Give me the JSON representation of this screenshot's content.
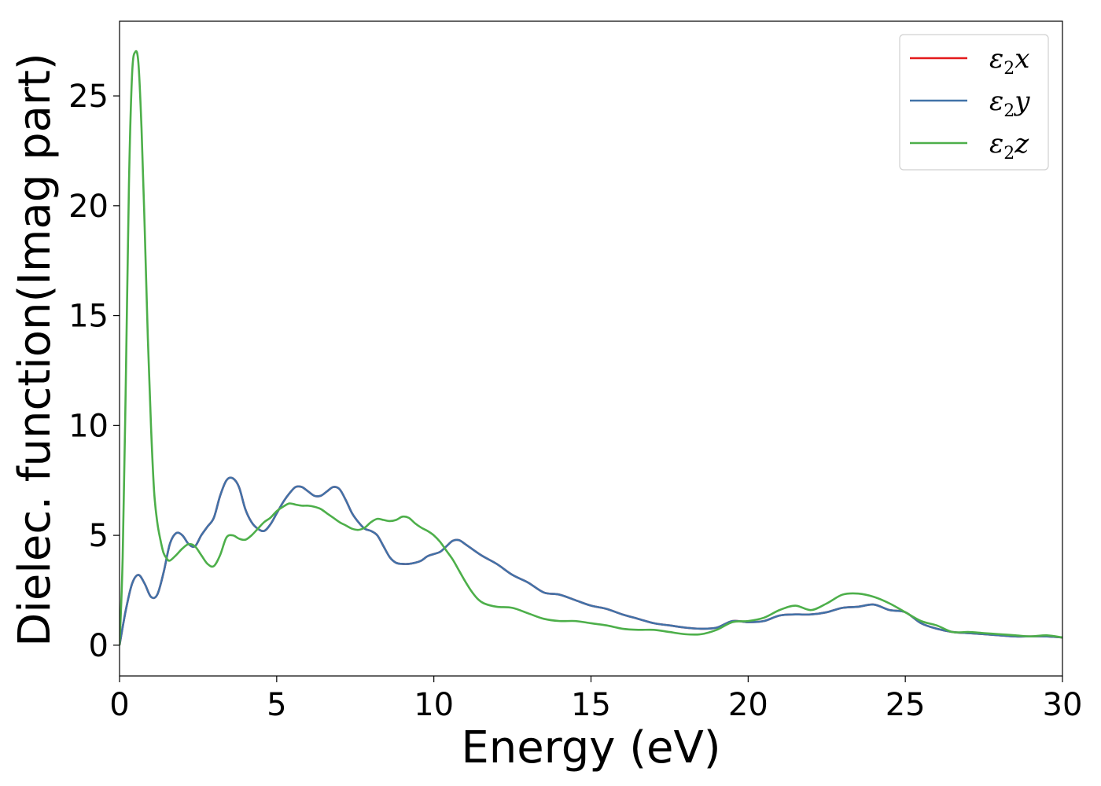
{
  "chart_data": {
    "type": "line",
    "title": "",
    "xlabel": "Energy (eV)",
    "ylabel": "Dielec. function(Imag part)",
    "xlim": [
      0,
      30
    ],
    "ylim": [
      -1.4,
      28.4
    ],
    "xticks": [
      0,
      5,
      10,
      15,
      20,
      25,
      30
    ],
    "yticks": [
      0,
      5,
      10,
      15,
      20,
      25
    ],
    "grid": false,
    "legend_position": "top-right",
    "series": [
      {
        "name": "ε2x",
        "label_main": "ε",
        "label_sub": "2",
        "label_var": "x",
        "color": "#e41a1c",
        "x": [
          0,
          0.2,
          0.4,
          0.6,
          0.8,
          1.0,
          1.2,
          1.4,
          1.6,
          1.8,
          2.0,
          2.2,
          2.4,
          2.6,
          2.8,
          3.0,
          3.2,
          3.4,
          3.6,
          3.8,
          4.0,
          4.2,
          4.4,
          4.6,
          4.8,
          5.0,
          5.2,
          5.4,
          5.6,
          5.8,
          6.0,
          6.2,
          6.4,
          6.6,
          6.8,
          7.0,
          7.2,
          7.4,
          7.6,
          7.8,
          8.0,
          8.2,
          8.4,
          8.6,
          8.8,
          9.0,
          9.2,
          9.4,
          9.6,
          9.8,
          10.0,
          10.2,
          10.4,
          10.6,
          10.8,
          11.0,
          11.5,
          12.0,
          12.5,
          13.0,
          13.5,
          14.0,
          14.5,
          15.0,
          15.5,
          16.0,
          16.5,
          17.0,
          17.5,
          18.0,
          18.5,
          19.0,
          19.5,
          20.0,
          20.5,
          21.0,
          21.5,
          22.0,
          22.5,
          23.0,
          23.5,
          24.0,
          24.5,
          25.0,
          25.5,
          26.0,
          26.5,
          27.0,
          27.5,
          28.0,
          28.5,
          29.0,
          29.5,
          30.0
        ],
        "y": [
          0.0,
          1.6,
          2.8,
          3.2,
          2.8,
          2.2,
          2.3,
          3.3,
          4.6,
          5.1,
          5.0,
          4.6,
          4.5,
          5.0,
          5.4,
          5.8,
          6.8,
          7.5,
          7.6,
          7.2,
          6.2,
          5.6,
          5.3,
          5.2,
          5.5,
          6.0,
          6.5,
          6.9,
          7.2,
          7.2,
          7.0,
          6.8,
          6.8,
          7.0,
          7.2,
          7.1,
          6.6,
          6.0,
          5.6,
          5.3,
          5.2,
          5.0,
          4.5,
          4.0,
          3.75,
          3.7,
          3.7,
          3.75,
          3.85,
          4.05,
          4.15,
          4.25,
          4.5,
          4.75,
          4.78,
          4.6,
          4.1,
          3.7,
          3.2,
          2.85,
          2.4,
          2.3,
          2.05,
          1.8,
          1.65,
          1.4,
          1.2,
          1.0,
          0.9,
          0.8,
          0.75,
          0.8,
          1.1,
          1.05,
          1.1,
          1.35,
          1.4,
          1.4,
          1.5,
          1.7,
          1.75,
          1.85,
          1.6,
          1.5,
          1.0,
          0.75,
          0.6,
          0.55,
          0.5,
          0.45,
          0.4,
          0.4,
          0.4,
          0.35
        ]
      },
      {
        "name": "ε2y",
        "label_main": "ε",
        "label_sub": "2",
        "label_var": "y",
        "color": "#4172a8",
        "x": [
          0,
          0.2,
          0.4,
          0.6,
          0.8,
          1.0,
          1.2,
          1.4,
          1.6,
          1.8,
          2.0,
          2.2,
          2.4,
          2.6,
          2.8,
          3.0,
          3.2,
          3.4,
          3.6,
          3.8,
          4.0,
          4.2,
          4.4,
          4.6,
          4.8,
          5.0,
          5.2,
          5.4,
          5.6,
          5.8,
          6.0,
          6.2,
          6.4,
          6.6,
          6.8,
          7.0,
          7.2,
          7.4,
          7.6,
          7.8,
          8.0,
          8.2,
          8.4,
          8.6,
          8.8,
          9.0,
          9.2,
          9.4,
          9.6,
          9.8,
          10.0,
          10.2,
          10.4,
          10.6,
          10.8,
          11.0,
          11.5,
          12.0,
          12.5,
          13.0,
          13.5,
          14.0,
          14.5,
          15.0,
          15.5,
          16.0,
          16.5,
          17.0,
          17.5,
          18.0,
          18.5,
          19.0,
          19.5,
          20.0,
          20.5,
          21.0,
          21.5,
          22.0,
          22.5,
          23.0,
          23.5,
          24.0,
          24.5,
          25.0,
          25.5,
          26.0,
          26.5,
          27.0,
          27.5,
          28.0,
          28.5,
          29.0,
          29.5,
          30.0
        ],
        "y": [
          0.0,
          1.6,
          2.8,
          3.2,
          2.8,
          2.2,
          2.3,
          3.3,
          4.6,
          5.1,
          5.0,
          4.6,
          4.5,
          5.0,
          5.4,
          5.8,
          6.8,
          7.5,
          7.6,
          7.2,
          6.2,
          5.6,
          5.3,
          5.2,
          5.5,
          6.0,
          6.5,
          6.9,
          7.2,
          7.2,
          7.0,
          6.8,
          6.8,
          7.0,
          7.2,
          7.1,
          6.6,
          6.0,
          5.6,
          5.3,
          5.2,
          5.0,
          4.5,
          4.0,
          3.75,
          3.7,
          3.7,
          3.75,
          3.85,
          4.05,
          4.15,
          4.25,
          4.5,
          4.75,
          4.78,
          4.6,
          4.1,
          3.7,
          3.2,
          2.85,
          2.4,
          2.3,
          2.05,
          1.8,
          1.65,
          1.4,
          1.2,
          1.0,
          0.9,
          0.8,
          0.75,
          0.8,
          1.1,
          1.05,
          1.1,
          1.35,
          1.4,
          1.4,
          1.5,
          1.7,
          1.75,
          1.85,
          1.6,
          1.5,
          1.0,
          0.75,
          0.6,
          0.55,
          0.5,
          0.45,
          0.4,
          0.4,
          0.4,
          0.35
        ]
      },
      {
        "name": "ε2z",
        "label_main": "ε",
        "label_sub": "2",
        "label_var": "z",
        "color": "#4daf4a",
        "x": [
          0,
          0.1,
          0.2,
          0.3,
          0.4,
          0.5,
          0.6,
          0.7,
          0.8,
          0.9,
          1.0,
          1.1,
          1.2,
          1.3,
          1.4,
          1.5,
          1.6,
          1.8,
          2.0,
          2.2,
          2.4,
          2.6,
          2.8,
          3.0,
          3.2,
          3.4,
          3.6,
          3.8,
          4.0,
          4.2,
          4.4,
          4.6,
          4.8,
          5.0,
          5.2,
          5.4,
          5.6,
          5.8,
          6.0,
          6.2,
          6.4,
          6.6,
          6.8,
          7.0,
          7.2,
          7.4,
          7.6,
          7.8,
          8.0,
          8.2,
          8.4,
          8.6,
          8.8,
          9.0,
          9.2,
          9.4,
          9.6,
          9.8,
          10.0,
          10.2,
          10.4,
          10.6,
          10.8,
          11.0,
          11.2,
          11.4,
          11.6,
          12.0,
          12.5,
          13.0,
          13.5,
          14.0,
          14.5,
          15.0,
          15.5,
          16.0,
          16.5,
          17.0,
          17.5,
          18.0,
          18.5,
          19.0,
          19.5,
          20.0,
          20.5,
          21.0,
          21.5,
          22.0,
          22.5,
          23.0,
          23.5,
          24.0,
          24.5,
          25.0,
          25.5,
          26.0,
          26.5,
          27.0,
          27.5,
          28.0,
          28.5,
          29.0,
          29.5,
          30.0
        ],
        "y": [
          0.0,
          4.0,
          12.0,
          21.0,
          26.0,
          27.0,
          26.5,
          23.5,
          19.0,
          14.0,
          10.0,
          7.0,
          5.6,
          4.8,
          4.2,
          3.95,
          3.85,
          4.1,
          4.4,
          4.6,
          4.5,
          4.1,
          3.7,
          3.6,
          4.1,
          4.9,
          5.0,
          4.85,
          4.8,
          5.0,
          5.3,
          5.6,
          5.8,
          6.1,
          6.3,
          6.45,
          6.4,
          6.35,
          6.35,
          6.3,
          6.2,
          6.0,
          5.8,
          5.6,
          5.45,
          5.3,
          5.25,
          5.35,
          5.6,
          5.75,
          5.7,
          5.65,
          5.7,
          5.85,
          5.8,
          5.55,
          5.35,
          5.2,
          5.0,
          4.7,
          4.3,
          3.9,
          3.4,
          2.9,
          2.45,
          2.1,
          1.9,
          1.75,
          1.7,
          1.45,
          1.2,
          1.1,
          1.1,
          1.0,
          0.9,
          0.75,
          0.7,
          0.7,
          0.6,
          0.5,
          0.5,
          0.7,
          1.05,
          1.1,
          1.25,
          1.6,
          1.8,
          1.6,
          1.9,
          2.3,
          2.35,
          2.2,
          1.9,
          1.5,
          1.1,
          0.9,
          0.6,
          0.6,
          0.55,
          0.5,
          0.45,
          0.4,
          0.45,
          0.35
        ]
      }
    ]
  }
}
